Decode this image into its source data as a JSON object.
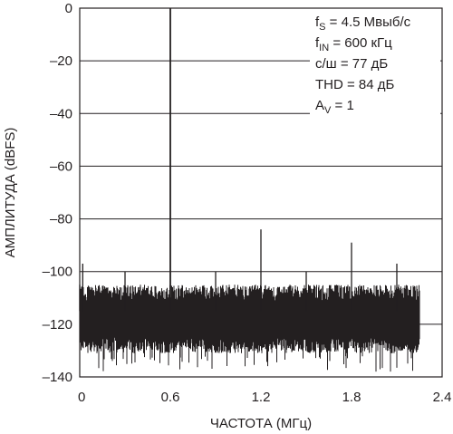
{
  "chart_data": {
    "type": "line",
    "xlabel": "ЧАСТОТА (МГц)",
    "ylabel": "АМПЛИТУДА (dBFS)",
    "xlim": [
      0,
      2.4
    ],
    "ylim": [
      -140,
      0
    ],
    "x_ticks": [
      "0",
      "0.6",
      "1.2",
      "1.8",
      "2.4"
    ],
    "y_ticks": [
      "0",
      "–20",
      "–40",
      "–60",
      "–80",
      "–100",
      "–120",
      "–140"
    ],
    "grid": true,
    "colors": {
      "trace": "#231f20",
      "grid": "#231f20",
      "background": "#ffffff"
    },
    "annotations": [
      {
        "base": "f",
        "sub": "S",
        "rest": " = 4.5 Мвыб/с"
      },
      {
        "base": "f",
        "sub": "IN",
        "rest": " = 600 кГц"
      },
      {
        "base": "с/ш = 77 дБ",
        "sub": "",
        "rest": ""
      },
      {
        "base": "THD = 84 дБ",
        "sub": "",
        "rest": ""
      },
      {
        "base": "A",
        "sub": "V",
        "rest": " = 1"
      }
    ],
    "noise_floor": {
      "x_range": [
        0,
        2.25
      ],
      "typical_range": [
        -128,
        -108
      ],
      "min": -138,
      "max": -105
    },
    "peaks": [
      {
        "x": 0.0,
        "y": -105
      },
      {
        "x": 0.02,
        "y": -97
      },
      {
        "x": 0.3,
        "y": -100
      },
      {
        "x": 0.6,
        "y": 0
      },
      {
        "x": 0.9,
        "y": -100
      },
      {
        "x": 1.2,
        "y": -84
      },
      {
        "x": 1.5,
        "y": -100
      },
      {
        "x": 1.8,
        "y": -89
      },
      {
        "x": 2.1,
        "y": -97
      }
    ]
  }
}
